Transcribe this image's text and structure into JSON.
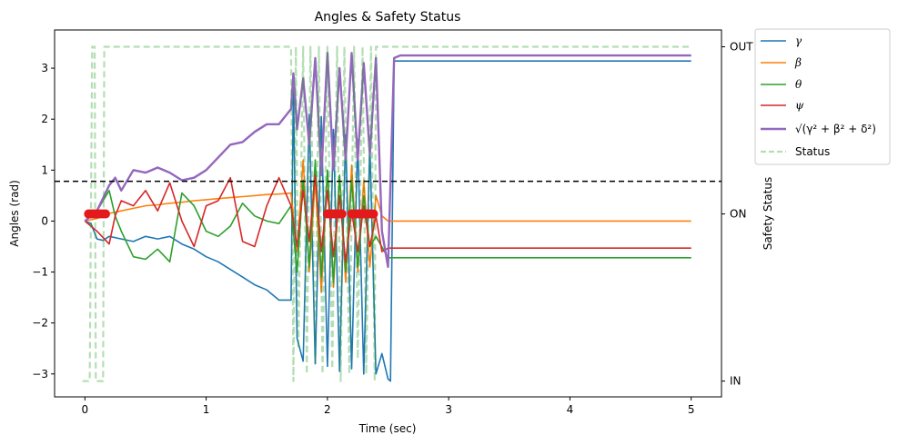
{
  "chart_data": {
    "type": "line",
    "title": "Angles & Safety Status",
    "xlabel": "Time (sec)",
    "ylabel": "Angles (rad)",
    "ylabel_right": "Safety Status",
    "xlim": [
      -0.25,
      5.25
    ],
    "ylim": [
      -3.45,
      3.75
    ],
    "x_ticks": [
      0,
      1,
      2,
      3,
      4,
      5
    ],
    "y_ticks": [
      -3,
      -2,
      -1,
      0,
      1,
      2,
      3
    ],
    "right_axis": {
      "ticks": [
        {
          "label": "IN",
          "value": -3.14
        },
        {
          "label": "ON",
          "value": 0.14
        },
        {
          "label": "OUT",
          "value": 3.42
        }
      ]
    },
    "threshold": {
      "y": 0.78,
      "style": "dashed",
      "color": "#000000"
    },
    "legend_position": "outside-top-right",
    "series": [
      {
        "name": "γ",
        "color": "#1f77b4",
        "width": 1.6,
        "points": [
          [
            0,
            0
          ],
          [
            0.05,
            -0.05
          ],
          [
            0.1,
            -0.35
          ],
          [
            0.15,
            -0.38
          ],
          [
            0.2,
            -0.3
          ],
          [
            0.3,
            -0.35
          ],
          [
            0.4,
            -0.4
          ],
          [
            0.5,
            -0.3
          ],
          [
            0.6,
            -0.35
          ],
          [
            0.7,
            -0.3
          ],
          [
            0.8,
            -0.45
          ],
          [
            0.9,
            -0.55
          ],
          [
            1.0,
            -0.7
          ],
          [
            1.1,
            -0.8
          ],
          [
            1.2,
            -0.95
          ],
          [
            1.3,
            -1.1
          ],
          [
            1.4,
            -1.25
          ],
          [
            1.5,
            -1.35
          ],
          [
            1.6,
            -1.55
          ],
          [
            1.7,
            -1.55
          ],
          [
            1.72,
            2.6
          ],
          [
            1.75,
            -2.3
          ],
          [
            1.8,
            -2.75
          ],
          [
            1.85,
            2.1
          ],
          [
            1.9,
            -2.8
          ],
          [
            1.95,
            2.05
          ],
          [
            2.0,
            -2.85
          ],
          [
            2.05,
            1.8
          ],
          [
            2.1,
            -2.95
          ],
          [
            2.15,
            1.7
          ],
          [
            2.2,
            -2.9
          ],
          [
            2.25,
            1.6
          ],
          [
            2.3,
            -3.0
          ],
          [
            2.35,
            1.5
          ],
          [
            2.4,
            -3.0
          ],
          [
            2.45,
            -2.6
          ],
          [
            2.5,
            -3.1
          ],
          [
            2.52,
            -3.14
          ],
          [
            2.55,
            3.14
          ],
          [
            5.0,
            3.14
          ]
        ]
      },
      {
        "name": "β",
        "color": "#ff7f0e",
        "width": 1.6,
        "points": [
          [
            0,
            0
          ],
          [
            0.1,
            0.05
          ],
          [
            0.2,
            0.15
          ],
          [
            0.3,
            0.2
          ],
          [
            0.4,
            0.25
          ],
          [
            0.5,
            0.3
          ],
          [
            0.6,
            0.32
          ],
          [
            0.7,
            0.35
          ],
          [
            0.8,
            0.37
          ],
          [
            0.9,
            0.4
          ],
          [
            1.0,
            0.42
          ],
          [
            1.1,
            0.44
          ],
          [
            1.2,
            0.46
          ],
          [
            1.3,
            0.48
          ],
          [
            1.4,
            0.5
          ],
          [
            1.5,
            0.52
          ],
          [
            1.6,
            0.53
          ],
          [
            1.7,
            0.55
          ],
          [
            1.75,
            -0.6
          ],
          [
            1.8,
            1.2
          ],
          [
            1.85,
            -1.0
          ],
          [
            1.9,
            0.8
          ],
          [
            1.95,
            -1.4
          ],
          [
            2.0,
            1.0
          ],
          [
            2.05,
            -1.3
          ],
          [
            2.1,
            0.9
          ],
          [
            2.15,
            -1.2
          ],
          [
            2.2,
            1.1
          ],
          [
            2.25,
            -1.0
          ],
          [
            2.3,
            0.8
          ],
          [
            2.35,
            -0.9
          ],
          [
            2.4,
            0.5
          ],
          [
            2.45,
            0.1
          ],
          [
            2.5,
            0.0
          ],
          [
            5.0,
            0.0
          ]
        ]
      },
      {
        "name": "θ",
        "color": "#2ca02c",
        "width": 1.6,
        "points": [
          [
            0,
            0
          ],
          [
            0.1,
            0.2
          ],
          [
            0.2,
            0.6
          ],
          [
            0.25,
            0.1
          ],
          [
            0.3,
            -0.2
          ],
          [
            0.4,
            -0.7
          ],
          [
            0.5,
            -0.75
          ],
          [
            0.6,
            -0.55
          ],
          [
            0.7,
            -0.8
          ],
          [
            0.8,
            0.55
          ],
          [
            0.9,
            0.3
          ],
          [
            1.0,
            -0.2
          ],
          [
            1.1,
            -0.3
          ],
          [
            1.2,
            -0.1
          ],
          [
            1.3,
            0.35
          ],
          [
            1.4,
            0.1
          ],
          [
            1.5,
            0.0
          ],
          [
            1.6,
            -0.05
          ],
          [
            1.7,
            0.3
          ],
          [
            1.75,
            -1.0
          ],
          [
            1.8,
            0.8
          ],
          [
            1.85,
            -0.9
          ],
          [
            1.9,
            1.2
          ],
          [
            1.95,
            -1.1
          ],
          [
            2.0,
            1.0
          ],
          [
            2.05,
            -1.2
          ],
          [
            2.1,
            0.9
          ],
          [
            2.15,
            -1.0
          ],
          [
            2.2,
            0.8
          ],
          [
            2.25,
            -0.9
          ],
          [
            2.3,
            0.5
          ],
          [
            2.35,
            -0.5
          ],
          [
            2.4,
            -0.3
          ],
          [
            2.5,
            -0.72
          ],
          [
            5.0,
            -0.72
          ]
        ]
      },
      {
        "name": "ψ",
        "color": "#d62728",
        "width": 1.6,
        "points": [
          [
            0,
            0
          ],
          [
            0.1,
            -0.2
          ],
          [
            0.2,
            -0.45
          ],
          [
            0.25,
            0.1
          ],
          [
            0.3,
            0.4
          ],
          [
            0.4,
            0.3
          ],
          [
            0.5,
            0.6
          ],
          [
            0.6,
            0.2
          ],
          [
            0.7,
            0.75
          ],
          [
            0.8,
            0.0
          ],
          [
            0.9,
            -0.5
          ],
          [
            1.0,
            0.3
          ],
          [
            1.1,
            0.4
          ],
          [
            1.2,
            0.85
          ],
          [
            1.3,
            -0.4
          ],
          [
            1.4,
            -0.5
          ],
          [
            1.5,
            0.3
          ],
          [
            1.6,
            0.85
          ],
          [
            1.7,
            0.3
          ],
          [
            1.75,
            -0.5
          ],
          [
            1.8,
            0.6
          ],
          [
            1.85,
            -0.4
          ],
          [
            1.9,
            0.9
          ],
          [
            1.95,
            -0.6
          ],
          [
            2.0,
            0.6
          ],
          [
            2.05,
            -0.7
          ],
          [
            2.1,
            0.5
          ],
          [
            2.15,
            -0.8
          ],
          [
            2.2,
            0.2
          ],
          [
            2.25,
            -0.6
          ],
          [
            2.3,
            0.3
          ],
          [
            2.35,
            -0.5
          ],
          [
            2.4,
            0.1
          ],
          [
            2.45,
            -0.6
          ],
          [
            2.5,
            -0.53
          ],
          [
            5.0,
            -0.53
          ]
        ]
      },
      {
        "name": "√(γ² + β² + δ²)",
        "color": "#9467bd",
        "width": 2.4,
        "points": [
          [
            0,
            0
          ],
          [
            0.1,
            0.2
          ],
          [
            0.2,
            0.7
          ],
          [
            0.25,
            0.85
          ],
          [
            0.3,
            0.6
          ],
          [
            0.4,
            1.0
          ],
          [
            0.5,
            0.95
          ],
          [
            0.6,
            1.05
          ],
          [
            0.7,
            0.95
          ],
          [
            0.8,
            0.8
          ],
          [
            0.9,
            0.85
          ],
          [
            1.0,
            1.0
          ],
          [
            1.1,
            1.25
          ],
          [
            1.2,
            1.5
          ],
          [
            1.3,
            1.55
          ],
          [
            1.4,
            1.75
          ],
          [
            1.5,
            1.9
          ],
          [
            1.6,
            1.9
          ],
          [
            1.7,
            2.2
          ],
          [
            1.72,
            2.9
          ],
          [
            1.75,
            1.8
          ],
          [
            1.8,
            2.8
          ],
          [
            1.85,
            1.5
          ],
          [
            1.9,
            3.2
          ],
          [
            1.95,
            0.9
          ],
          [
            2.0,
            3.3
          ],
          [
            2.05,
            1.0
          ],
          [
            2.1,
            3.0
          ],
          [
            2.15,
            1.2
          ],
          [
            2.2,
            3.3
          ],
          [
            2.25,
            1.2
          ],
          [
            2.3,
            3.1
          ],
          [
            2.35,
            1.3
          ],
          [
            2.4,
            3.2
          ],
          [
            2.45,
            -0.2
          ],
          [
            2.5,
            -0.9
          ],
          [
            2.55,
            3.2
          ],
          [
            2.6,
            3.25
          ],
          [
            5.0,
            3.25
          ]
        ]
      },
      {
        "name": "Status",
        "color": "#2ca02c",
        "opacity": 0.35,
        "width": 2.2,
        "dash": "7,4",
        "points": [
          [
            -0.02,
            -3.14
          ],
          [
            0.04,
            -3.14
          ],
          [
            0.06,
            3.42
          ],
          [
            0.08,
            3.42
          ],
          [
            0.09,
            -3.14
          ],
          [
            0.15,
            -3.14
          ],
          [
            0.16,
            3.42
          ],
          [
            0.18,
            3.42
          ],
          [
            0.19,
            3.42
          ],
          [
            0.2,
            3.42
          ],
          [
            1.7,
            3.42
          ],
          [
            1.72,
            -3.14
          ],
          [
            1.74,
            3.42
          ],
          [
            1.76,
            -2.5
          ],
          [
            1.8,
            3.42
          ],
          [
            1.83,
            -3.0
          ],
          [
            1.86,
            3.42
          ],
          [
            1.9,
            -2.8
          ],
          [
            1.93,
            3.42
          ],
          [
            1.96,
            -3.0
          ],
          [
            2.0,
            3.42
          ],
          [
            2.04,
            -2.9
          ],
          [
            2.08,
            3.42
          ],
          [
            2.11,
            -3.14
          ],
          [
            2.14,
            3.42
          ],
          [
            2.18,
            -3.0
          ],
          [
            2.22,
            3.42
          ],
          [
            2.25,
            -2.7
          ],
          [
            2.29,
            3.42
          ],
          [
            2.32,
            -3.0
          ],
          [
            2.36,
            3.42
          ],
          [
            2.39,
            -3.14
          ],
          [
            2.4,
            3.42
          ],
          [
            5.0,
            3.42
          ]
        ]
      }
    ],
    "markers": {
      "color": "#e31a1c",
      "y": 0.14,
      "x": [
        0.03,
        0.05,
        0.07,
        0.09,
        0.11,
        0.13,
        0.15,
        0.17,
        2.0,
        2.02,
        2.04,
        2.06,
        2.08,
        2.1,
        2.12,
        2.2,
        2.22,
        2.24,
        2.26,
        2.28,
        2.3,
        2.32,
        2.34,
        2.36,
        2.38
      ]
    }
  }
}
